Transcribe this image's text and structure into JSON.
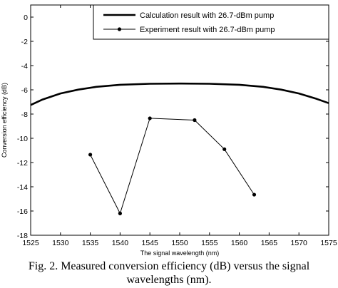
{
  "chart_data": {
    "type": "line",
    "xlabel": "The signal wavelength (nm)",
    "ylabel": "Conversion efficiency (dB)",
    "xlim": [
      1525,
      1575
    ],
    "ylim": [
      -18,
      1
    ],
    "xticks": [
      1525,
      1530,
      1535,
      1540,
      1545,
      1550,
      1555,
      1560,
      1565,
      1570,
      1575
    ],
    "yticks": [
      0,
      -2,
      -4,
      -6,
      -8,
      -10,
      -12,
      -14,
      -16,
      -18
    ],
    "xtick_labels": [
      "1525",
      "1530",
      "1535",
      "1540",
      "1545",
      "1550",
      "1555",
      "1560",
      "1565",
      "1570",
      "1575"
    ],
    "ytick_labels": [
      "0",
      "-2",
      "-4",
      "-6",
      "-8",
      "-10",
      "-12",
      "-14",
      "-16",
      "-18"
    ],
    "legend_position": "top-right",
    "grid": false,
    "series": [
      {
        "name": "Calculation result with 26.7-dBm pump",
        "style": "thick-line",
        "color": "#000000",
        "x": [
          1525,
          1527,
          1530,
          1533,
          1536,
          1540,
          1545,
          1550,
          1555,
          1560,
          1564,
          1567,
          1570,
          1573,
          1575
        ],
        "y": [
          -7.25,
          -6.8,
          -6.3,
          -5.98,
          -5.75,
          -5.58,
          -5.5,
          -5.48,
          -5.5,
          -5.58,
          -5.75,
          -5.98,
          -6.3,
          -6.75,
          -7.1
        ]
      },
      {
        "name": "Experiment result with 26.7-dBm pump",
        "style": "line-with-dots",
        "color": "#000000",
        "x": [
          1535,
          1540,
          1545,
          1552.5,
          1557.5,
          1562.5
        ],
        "y": [
          -11.35,
          -16.2,
          -8.35,
          -8.5,
          -10.9,
          -14.65
        ]
      }
    ]
  },
  "caption": {
    "line1": "Fig. 2. Measured conversion efficiency (dB) versus the signal",
    "line2": "wavelengths (nm)."
  }
}
